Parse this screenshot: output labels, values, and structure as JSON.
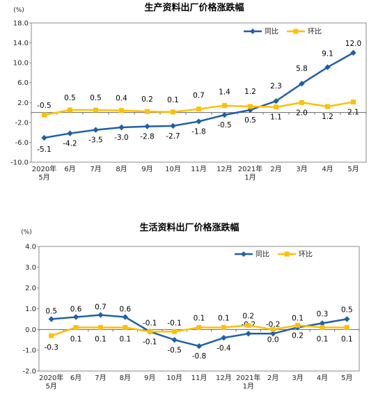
{
  "chart_data": [
    {
      "type": "line",
      "title": "生产资料出厂价格涨跌幅",
      "unit": "(%)",
      "categories": [
        [
          "2020年",
          "5月"
        ],
        [
          "6月"
        ],
        [
          "7月"
        ],
        [
          "8月"
        ],
        [
          "9月"
        ],
        [
          "10月"
        ],
        [
          "11月"
        ],
        [
          "12月"
        ],
        [
          "2021年",
          "1月"
        ],
        [
          "2月"
        ],
        [
          "3月"
        ],
        [
          "4月"
        ],
        [
          "5月"
        ]
      ],
      "ylim": [
        -10.0,
        18.0
      ],
      "yticks": [
        "-10.0",
        "-6.0",
        "-2.0",
        "2.0",
        "6.0",
        "10.0",
        "14.0",
        "18.0"
      ],
      "series": [
        {
          "name": "同比",
          "color": "#1F5FAA",
          "marker": "diamond",
          "values": [
            -5.1,
            -4.2,
            -3.5,
            -3.0,
            -2.8,
            -2.7,
            -1.8,
            -0.5,
            0.5,
            2.3,
            5.8,
            9.1,
            12.0
          ],
          "labels": [
            "-5.1",
            "-4.2",
            "-3.5",
            "-3.0",
            "-2.8",
            "-2.7",
            "-1.8",
            "-0.5",
            "0.5",
            "2.3",
            "5.8",
            "9.1",
            "12.0"
          ]
        },
        {
          "name": "环比",
          "color": "#FFC000",
          "marker": "square",
          "values": [
            -0.5,
            0.5,
            0.5,
            0.4,
            0.2,
            0.1,
            0.7,
            1.4,
            1.2,
            1.1,
            2.0,
            1.2,
            2.1
          ],
          "labels": [
            "-0.5",
            "0.5",
            "0.5",
            "0.4",
            "0.2",
            "0.1",
            "0.7",
            "1.4",
            "1.2",
            "1.1",
            "2.0",
            "1.2",
            "2.1"
          ]
        }
      ],
      "legend": "top-right",
      "grid": false
    },
    {
      "type": "line",
      "title": "生活资料出厂价格涨跌幅",
      "unit": "(%)",
      "categories": [
        [
          "2020年",
          "5月"
        ],
        [
          "6月"
        ],
        [
          "7月"
        ],
        [
          "8月"
        ],
        [
          "9月"
        ],
        [
          "10月"
        ],
        [
          "11月"
        ],
        [
          "12月"
        ],
        [
          "2021年",
          "1月"
        ],
        [
          "2月"
        ],
        [
          "3月"
        ],
        [
          "4月"
        ],
        [
          "5月"
        ]
      ],
      "ylim": [
        -2.0,
        4.0
      ],
      "yticks": [
        "-2.0",
        "-1.0",
        "0.0",
        "1.0",
        "2.0",
        "3.0",
        "4.0"
      ],
      "series": [
        {
          "name": "同比",
          "color": "#1F5FAA",
          "marker": "diamond",
          "values": [
            0.5,
            0.6,
            0.7,
            0.6,
            -0.1,
            -0.5,
            -0.8,
            -0.4,
            -0.2,
            -0.2,
            0.1,
            0.3,
            0.5
          ],
          "labels": [
            "0.5",
            "0.6",
            "0.7",
            "0.6",
            "-0.1",
            "-0.5",
            "-0.8",
            "-0.4",
            "-0.2",
            "-0.2",
            "0.1",
            "0.3",
            "0.5"
          ]
        },
        {
          "name": "环比",
          "color": "#FFC000",
          "marker": "square",
          "values": [
            -0.3,
            0.1,
            0.1,
            0.1,
            -0.1,
            -0.1,
            0.1,
            0.1,
            0.2,
            0.0,
            0.2,
            0.1,
            0.1
          ],
          "labels": [
            "-0.3",
            "0.1",
            "0.1",
            "0.1",
            "-0.1",
            "-0.1",
            "0.1",
            "0.1",
            "0.2",
            "0.0",
            "0.2",
            "0.1",
            "0.1"
          ]
        }
      ],
      "legend": "top-right",
      "grid": false
    }
  ]
}
